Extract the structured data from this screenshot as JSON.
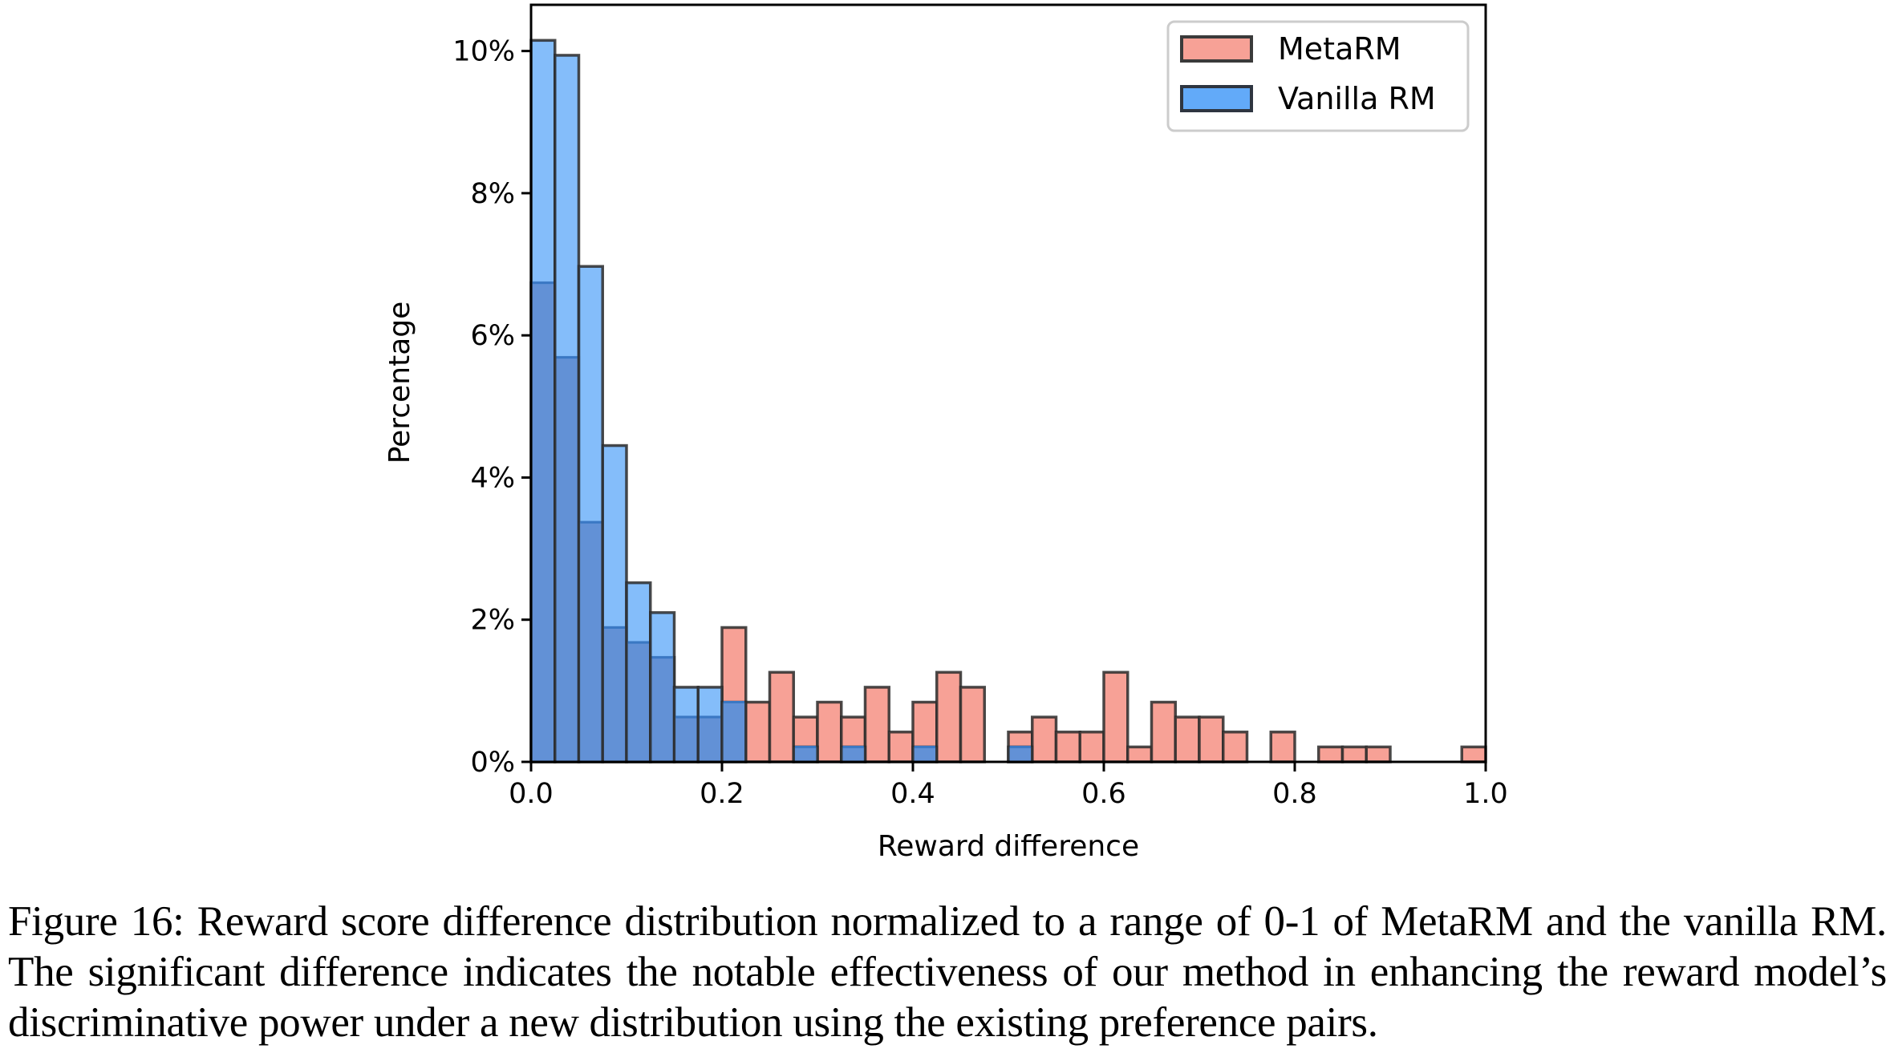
{
  "chart_data": {
    "type": "bar",
    "subtype": "overlapping-histogram",
    "title": "",
    "xlabel": "Reward difference",
    "ylabel": "Percentage",
    "xlim": [
      0.0,
      1.0
    ],
    "ylim": [
      0,
      10.65
    ],
    "bin_width": 0.025,
    "bin_edges_start": 0.0,
    "x_ticks": [
      0.0,
      0.2,
      0.4,
      0.6,
      0.8,
      1.0
    ],
    "x_tick_labels": [
      "0.0",
      "0.2",
      "0.4",
      "0.6",
      "0.8",
      "1.0"
    ],
    "y_ticks": [
      0,
      2,
      4,
      6,
      8,
      10
    ],
    "y_tick_labels": [
      "0%",
      "2%",
      "4%",
      "6%",
      "8%",
      "10%"
    ],
    "grid": false,
    "legend_position": "top-right",
    "series": [
      {
        "name": "MetaRM",
        "color": "#F7A196",
        "values": [
          6.74,
          5.69,
          3.37,
          1.89,
          1.68,
          1.47,
          0.63,
          0.63,
          1.89,
          0.84,
          1.26,
          0.63,
          0.84,
          0.63,
          1.05,
          0.42,
          0.84,
          1.26,
          1.05,
          0.0,
          0.42,
          0.63,
          0.42,
          0.42,
          1.26,
          0.21,
          0.84,
          0.63,
          0.63,
          0.42,
          0.0,
          0.42,
          0.0,
          0.21,
          0.21,
          0.21,
          0.0,
          0.0,
          0.0,
          0.21
        ]
      },
      {
        "name": "Vanilla RM",
        "color": "#62AAF9",
        "values": [
          10.15,
          9.94,
          6.97,
          4.45,
          2.52,
          2.1,
          1.05,
          1.05,
          0.84,
          0.0,
          0.0,
          0.21,
          0.0,
          0.21,
          0.0,
          0.0,
          0.21,
          0.0,
          0.0,
          0.0,
          0.21,
          0.0,
          0.0,
          0.0,
          0.0,
          0.0,
          0.0,
          0.0,
          0.0,
          0.0,
          0.0,
          0.0,
          0.0,
          0.0,
          0.0,
          0.0,
          0.0,
          0.0,
          0.0,
          0.0
        ]
      }
    ],
    "overlap_color": "#6291D6",
    "edge_color": "#2b2b2b"
  },
  "caption": "Figure 16: Reward score difference distribution normalized to a range of 0-1 of MetaRM and the vanilla RM. The significant difference indicates the notable effectiveness of our method in enhancing the reward model’s discriminative power under a new distribution using the existing preference pairs."
}
